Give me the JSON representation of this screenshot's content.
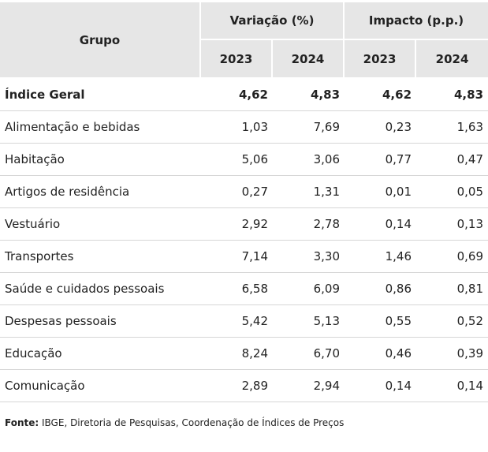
{
  "header": {
    "grupo": "Grupo",
    "variacao": "Variação (%)",
    "impacto": "Impacto (p.p.)",
    "years": [
      "2023",
      "2024",
      "2023",
      "2024"
    ]
  },
  "rows": [
    {
      "name": "Índice Geral",
      "values": [
        "4,62",
        "4,83",
        "4,62",
        "4,83"
      ]
    },
    {
      "name": "Alimentação e bebidas",
      "values": [
        "1,03",
        "7,69",
        "0,23",
        "1,63"
      ]
    },
    {
      "name": "Habitação",
      "values": [
        "5,06",
        "3,06",
        "0,77",
        "0,47"
      ]
    },
    {
      "name": "Artigos de residência",
      "values": [
        "0,27",
        "1,31",
        "0,01",
        "0,05"
      ]
    },
    {
      "name": "Vestuário",
      "values": [
        "2,92",
        "2,78",
        "0,14",
        "0,13"
      ]
    },
    {
      "name": "Transportes",
      "values": [
        "7,14",
        "3,30",
        "1,46",
        "0,69"
      ]
    },
    {
      "name": "Saúde e cuidados pessoais",
      "values": [
        "6,58",
        "6,09",
        "0,86",
        "0,81"
      ]
    },
    {
      "name": "Despesas pessoais",
      "values": [
        "5,42",
        "5,13",
        "0,55",
        "0,52"
      ]
    },
    {
      "name": "Educação",
      "values": [
        "8,24",
        "6,70",
        "0,46",
        "0,39"
      ]
    },
    {
      "name": "Comunicação",
      "values": [
        "2,89",
        "2,94",
        "0,14",
        "0,14"
      ]
    }
  ],
  "footer": {
    "label": "Fonte:",
    "text": "IBGE, Diretoria de Pesquisas, Coordenação de Índices de Preços"
  }
}
